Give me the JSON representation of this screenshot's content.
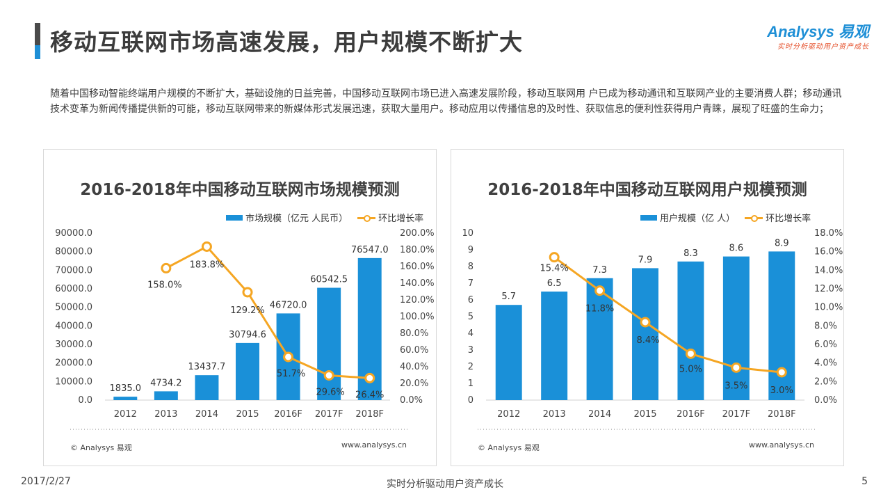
{
  "header": {
    "title": "移动互联网市场高速发展，用户规模不断扩大",
    "logo_main": "Analysys 易观",
    "logo_sub": "实时分析驱动用户资产成长"
  },
  "intro_text": "随着中国移动智能终端用户规模的不断扩大，基础设施的日益完善，中国移动互联网市场已进入高速发展阶段，移动互联网用 户已成为移动通讯和互联网产业的主要消费人群；移动通讯技术变革为新闻传播提供新的可能，移动互联网带来的新媒体形式发展迅速，获取大量用户。移动应用以传播信息的及时性、获取信息的便利性获得用户青睐，展现了旺盛的生命力；",
  "colors": {
    "bar": "#1a90d8",
    "line": "#f5a623",
    "accent": "#1e8fd6",
    "logo_sub": "#e5502b"
  },
  "chart_data": [
    {
      "type": "bar",
      "title": "2016-2018年中国移动互联网市场规模预测",
      "categories": [
        "2012",
        "2013",
        "2014",
        "2015",
        "2016F",
        "2017F",
        "2018F"
      ],
      "series": [
        {
          "name": "市场规模（亿元 人民币）",
          "type": "bar",
          "axis": "left",
          "values": [
            1835.0,
            4734.2,
            13437.7,
            30794.6,
            46720.0,
            60542.5,
            76547.0
          ],
          "labels": [
            "1835.0",
            "4734.2",
            "13437.7",
            "30794.6",
            "46720.0",
            "60542.5",
            "76547.0"
          ]
        },
        {
          "name": "环比增长率",
          "type": "line",
          "axis": "right",
          "values": [
            null,
            158.0,
            183.8,
            129.2,
            51.7,
            29.6,
            26.4
          ],
          "labels": [
            "",
            "158.0%",
            "183.8%",
            "129.2%",
            "51.7%",
            "29.6%",
            "26.4%"
          ]
        }
      ],
      "ylim_left": [
        0,
        90000
      ],
      "ylim_right": [
        0,
        200
      ],
      "yticks_left": [
        "0.0",
        "10000.0",
        "20000.0",
        "30000.0",
        "40000.0",
        "50000.0",
        "60000.0",
        "70000.0",
        "80000.0",
        "90000.0"
      ],
      "yticks_right": [
        "0.0%",
        "20.0%",
        "40.0%",
        "60.0%",
        "80.0%",
        "100.0%",
        "120.0%",
        "140.0%",
        "160.0%",
        "180.0%",
        "200.0%"
      ],
      "legend_position": "top-right",
      "footer_left": "© Analysys 易观",
      "footer_right": "www.analysys.cn"
    },
    {
      "type": "bar",
      "title": "2016-2018年中国移动互联网用户规模预测",
      "categories": [
        "2012",
        "2013",
        "2014",
        "2015",
        "2016F",
        "2017F",
        "2018F"
      ],
      "series": [
        {
          "name": "用户规模（亿 人）",
          "type": "bar",
          "axis": "left",
          "values": [
            5.7,
            6.5,
            7.3,
            7.9,
            8.3,
            8.6,
            8.9
          ],
          "labels": [
            "5.7",
            "6.5",
            "7.3",
            "7.9",
            "8.3",
            "8.6",
            "8.9"
          ]
        },
        {
          "name": "环比增长率",
          "type": "line",
          "axis": "right",
          "values": [
            null,
            15.4,
            11.8,
            8.4,
            5.0,
            3.5,
            3.0
          ],
          "labels": [
            "",
            "15.4%",
            "11.8%",
            "8.4%",
            "5.0%",
            "3.5%",
            "3.0%"
          ]
        }
      ],
      "ylim_left": [
        0,
        10
      ],
      "ylim_right": [
        0,
        18
      ],
      "yticks_left": [
        "0",
        "1",
        "2",
        "3",
        "4",
        "5",
        "6",
        "7",
        "8",
        "9",
        "10"
      ],
      "yticks_right": [
        "0.0%",
        "2.0%",
        "4.0%",
        "6.0%",
        "8.0%",
        "10.0%",
        "12.0%",
        "14.0%",
        "16.0%",
        "18.0%"
      ],
      "legend_position": "top-right",
      "footer_left": "© Analysys 易观",
      "footer_right": "www.analysys.cn"
    }
  ],
  "page_footer": {
    "date": "2017/2/27",
    "center": "实时分析驱动用户资产成长",
    "page": "5"
  }
}
